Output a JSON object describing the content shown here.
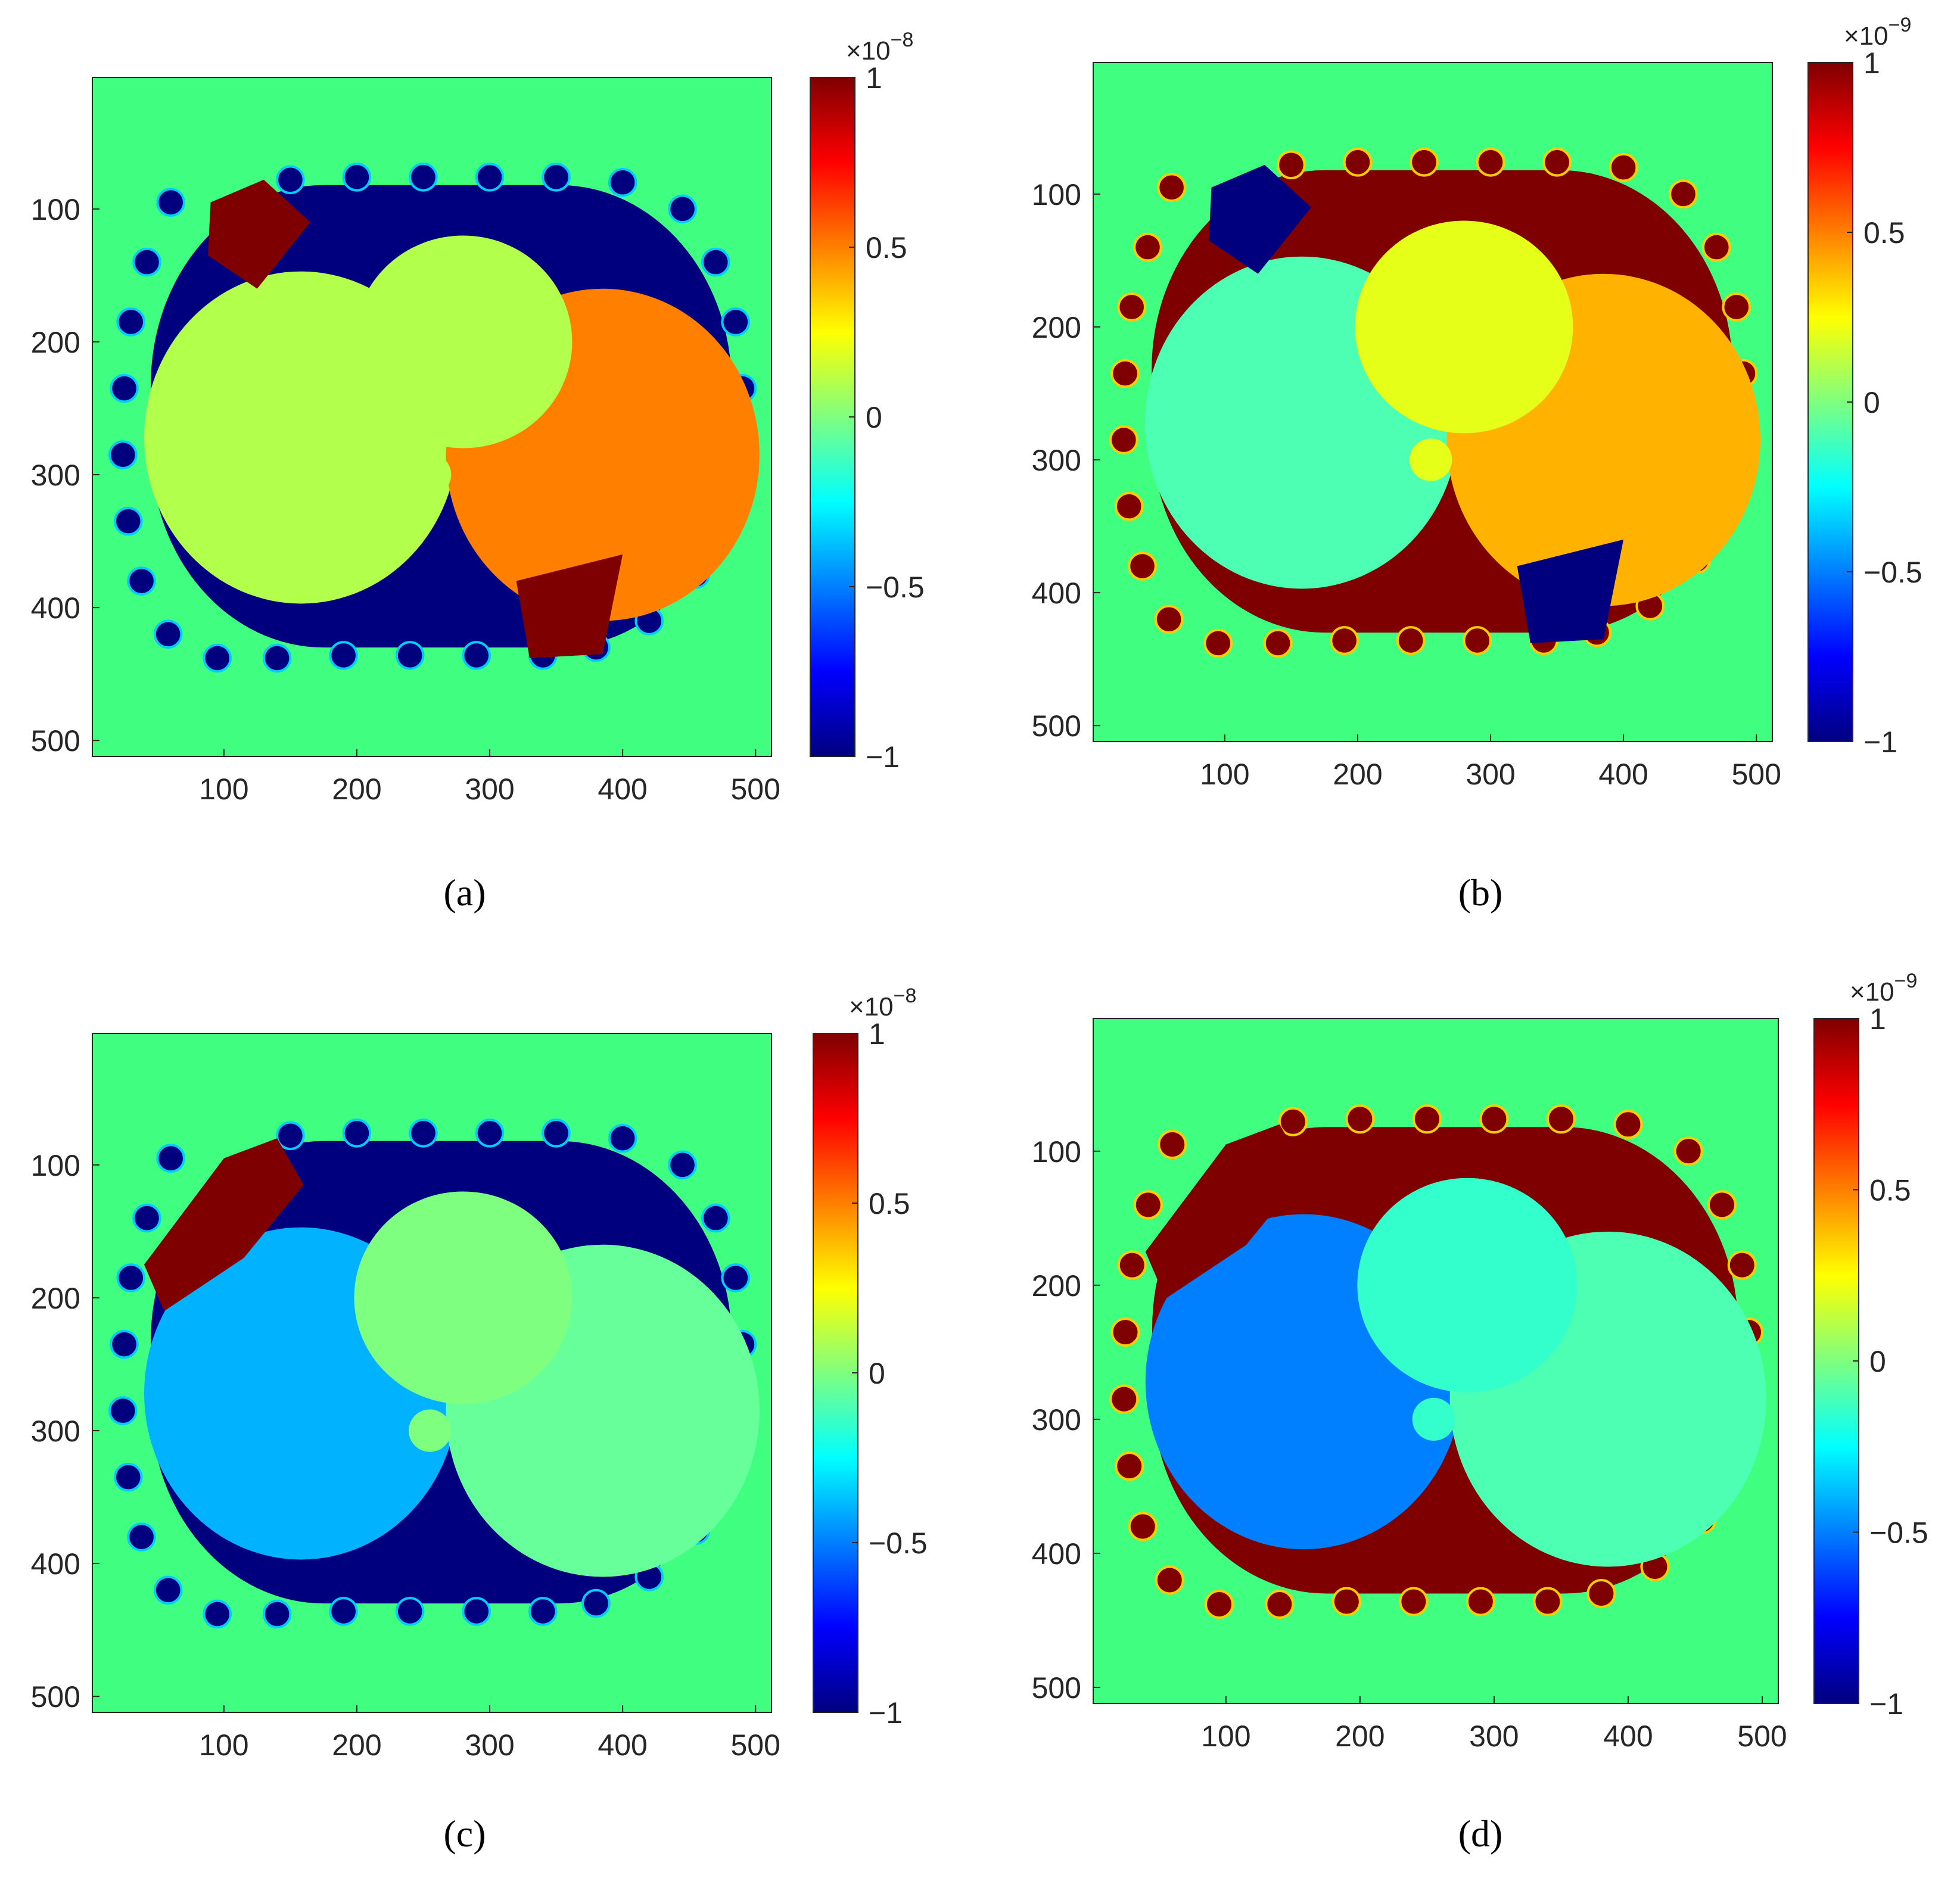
{
  "colormap": {
    "name": "jet",
    "stops": [
      "#00007f",
      "#0000ff",
      "#007fff",
      "#00ffff",
      "#7fff7f",
      "#ffff00",
      "#ff7f00",
      "#ff0000",
      "#7f0000"
    ],
    "background": "#40ff80"
  },
  "chart_data": [
    {
      "type": "heatmap",
      "panel": "a",
      "caption": "(a)",
      "x_ticks": [
        100,
        200,
        300,
        400,
        500
      ],
      "y_ticks": [
        100,
        200,
        300,
        400,
        500
      ],
      "xlim": [
        1,
        512
      ],
      "ylim": [
        1,
        512
      ],
      "colorbar": {
        "ticks": [
          -1,
          -0.5,
          0,
          0.5,
          1
        ],
        "tick_labels": [
          "−1",
          "−0.5",
          "0",
          "0.5",
          "1"
        ],
        "scale_base": "×10",
        "scale_exp": "−8",
        "range": [
          -1,
          1
        ]
      },
      "regions": {
        "shell": -1.0,
        "left_lung": 0.1,
        "right_lung": 0.5,
        "heart": 0.1,
        "left_electrode": 1.0,
        "right_electrode": 1.0
      }
    },
    {
      "type": "heatmap",
      "panel": "b",
      "caption": "(b)",
      "x_ticks": [
        100,
        200,
        300,
        400,
        500
      ],
      "y_ticks": [
        100,
        200,
        300,
        400,
        500
      ],
      "xlim": [
        1,
        512
      ],
      "ylim": [
        1,
        512
      ],
      "colorbar": {
        "ticks": [
          -1,
          -0.5,
          0,
          0.5,
          1
        ],
        "tick_labels": [
          "−1",
          "−0.5",
          "0",
          "0.5",
          "1"
        ],
        "scale_base": "×10",
        "scale_exp": "−9",
        "range": [
          -1,
          1
        ]
      },
      "regions": {
        "shell": 1.0,
        "left_lung": -0.1,
        "right_lung": 0.4,
        "heart": 0.2,
        "left_electrode": -1.0,
        "right_electrode": -1.0
      }
    },
    {
      "type": "heatmap",
      "panel": "c",
      "caption": "(c)",
      "x_ticks": [
        100,
        200,
        300,
        400,
        500
      ],
      "y_ticks": [
        100,
        200,
        300,
        400,
        500
      ],
      "xlim": [
        1,
        512
      ],
      "ylim": [
        1,
        512
      ],
      "colorbar": {
        "ticks": [
          -1,
          -0.5,
          0,
          0.5,
          1
        ],
        "tick_labels": [
          "−1",
          "−0.5",
          "0",
          "0.5",
          "1"
        ],
        "scale_base": "×10",
        "scale_exp": "−8",
        "range": [
          -1,
          1
        ]
      },
      "regions": {
        "shell": -1.0,
        "left_lung": -0.4,
        "right_lung": -0.05,
        "heart": 0.0,
        "left_electrode": 1.0,
        "right_electrode": null
      }
    },
    {
      "type": "heatmap",
      "panel": "d",
      "caption": "(d)",
      "x_ticks": [
        100,
        200,
        300,
        400,
        500
      ],
      "y_ticks": [
        100,
        200,
        300,
        400,
        500
      ],
      "xlim": [
        1,
        512
      ],
      "ylim": [
        1,
        512
      ],
      "colorbar": {
        "ticks": [
          -1,
          -0.5,
          0,
          0.5,
          1
        ],
        "tick_labels": [
          "−1",
          "−0.5",
          "0",
          "0.5",
          "1"
        ],
        "scale_base": "×10",
        "scale_exp": "−9",
        "range": [
          -1,
          1
        ]
      },
      "regions": {
        "shell": 1.0,
        "left_lung": -0.5,
        "right_lung": -0.1,
        "heart": -0.15,
        "left_electrode": 1.0,
        "right_electrode": null
      }
    }
  ]
}
